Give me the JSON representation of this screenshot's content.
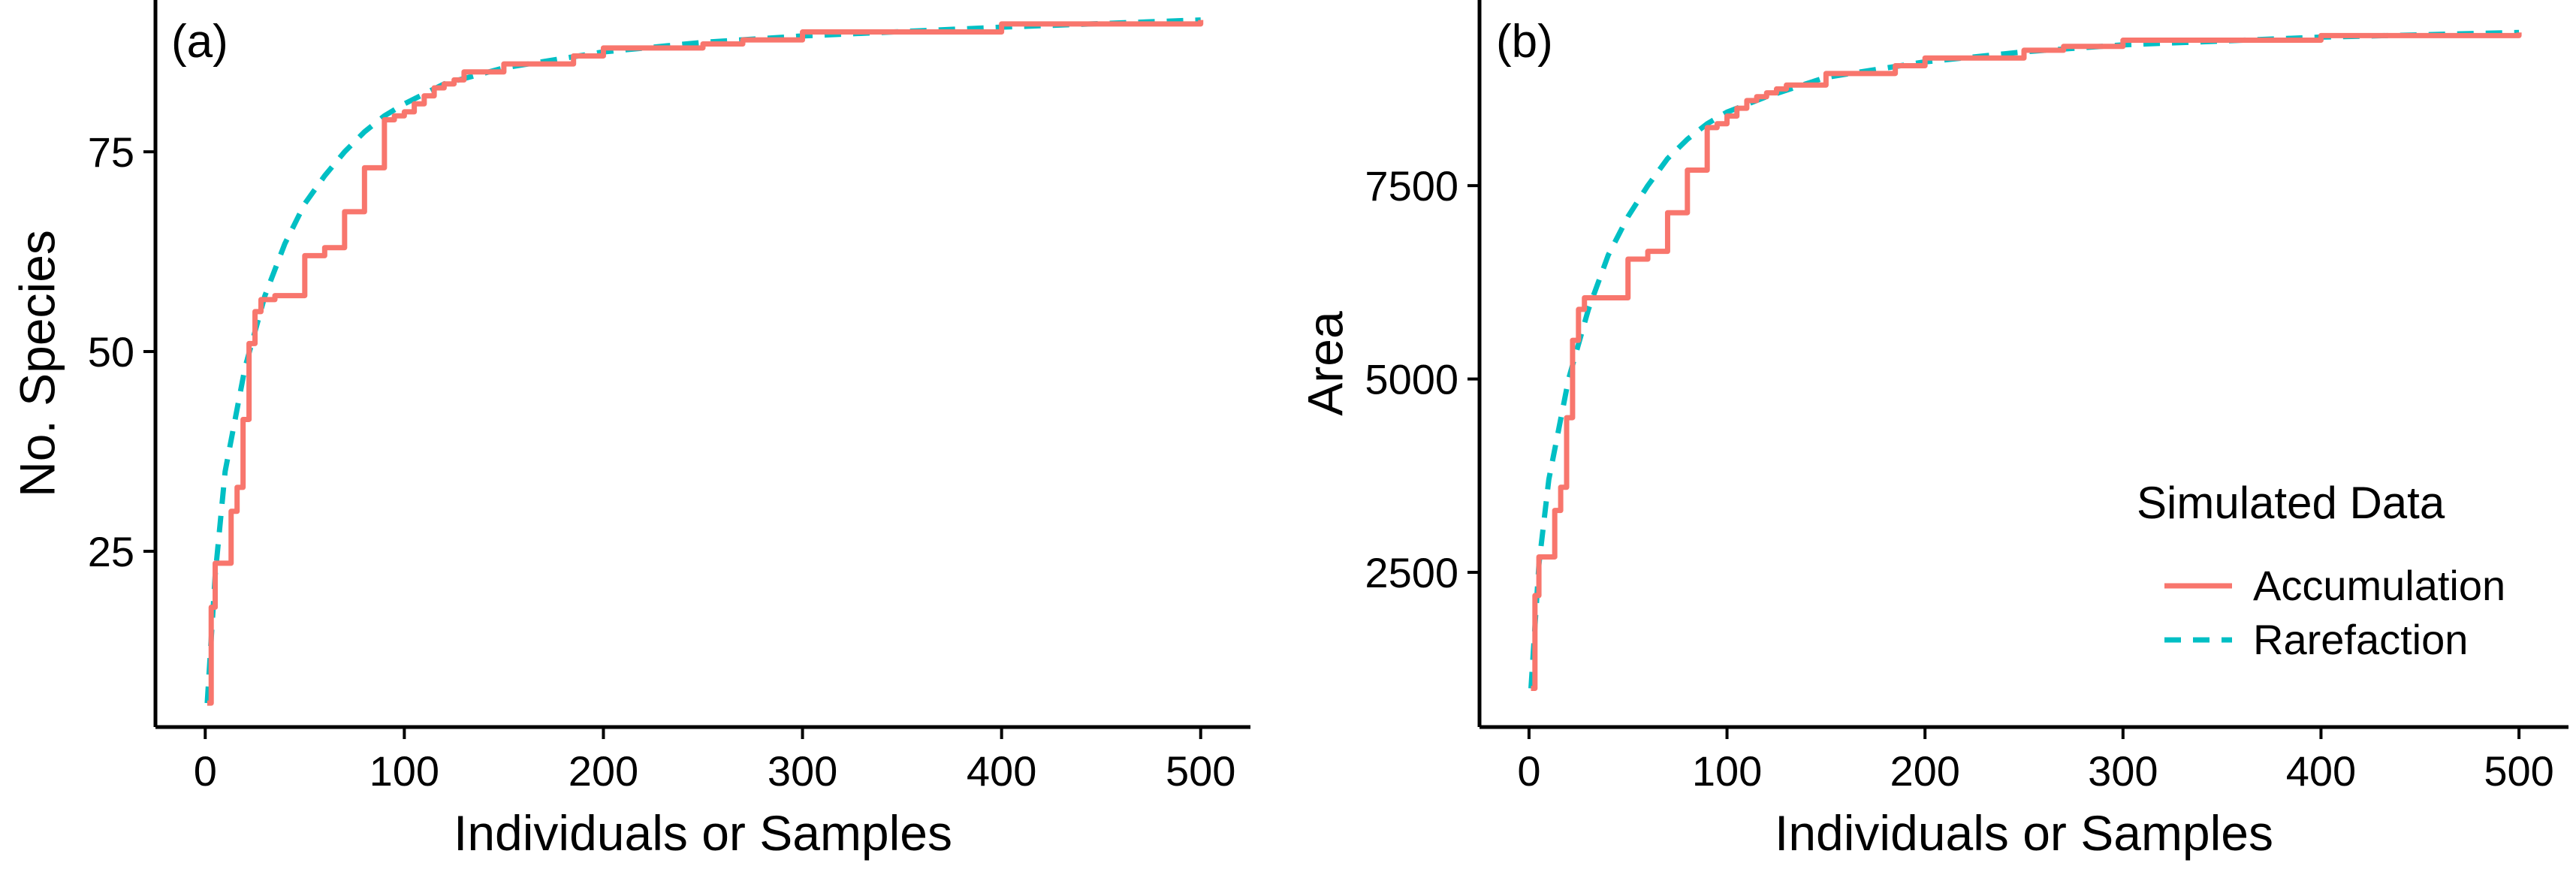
{
  "colors": {
    "accumulation": "#F8766D",
    "rarefaction": "#00BFC4",
    "axis": "#000000"
  },
  "legend": {
    "title": "Simulated Data",
    "items": [
      {
        "label": "Accumulation",
        "color": "#F8766D",
        "style": "solid"
      },
      {
        "label": "Rarefaction",
        "color": "#00BFC4",
        "style": "dashed"
      }
    ]
  },
  "chart_data": [
    {
      "type": "line",
      "panel_label": "(a)",
      "xlabel": "Individuals or Samples",
      "ylabel": "No. Species",
      "xlim": [
        -25,
        525
      ],
      "ylim": [
        3,
        94
      ],
      "xticks": [
        0,
        100,
        200,
        300,
        400,
        500
      ],
      "yticks": [
        25,
        50,
        75
      ],
      "grid": false,
      "series": [
        {
          "name": "Accumulation",
          "style": "step",
          "x": [
            1,
            3,
            5,
            10,
            13,
            16,
            19,
            22,
            25,
            28,
            32,
            35,
            40,
            50,
            60,
            70,
            80,
            90,
            95,
            100,
            105,
            110,
            115,
            120,
            125,
            130,
            150,
            185,
            200,
            230,
            250,
            270,
            300,
            400,
            500
          ],
          "y": [
            6,
            18,
            23.5,
            23.5,
            30,
            33,
            41.5,
            51,
            55,
            56.5,
            56.5,
            57,
            57,
            62,
            63,
            67.5,
            73,
            79,
            79.5,
            80,
            81,
            82,
            83,
            83.5,
            84,
            85,
            86,
            87,
            88,
            88,
            88.5,
            89,
            90,
            91,
            91.5
          ]
        },
        {
          "name": "Rarefaction",
          "style": "dashed",
          "x": [
            1,
            5,
            10,
            20,
            30,
            40,
            50,
            60,
            70,
            80,
            90,
            100,
            120,
            150,
            200,
            250,
            300,
            400,
            500
          ],
          "y": [
            6,
            22,
            35,
            48,
            57,
            63.5,
            68.5,
            72,
            75,
            77.5,
            79.5,
            81,
            83.5,
            85.5,
            87.5,
            88.7,
            89.5,
            90.6,
            91.5
          ]
        }
      ]
    },
    {
      "type": "line",
      "panel_label": "(b)",
      "xlabel": "Individuals or Samples",
      "ylabel": "Area",
      "xlim": [
        -25,
        525
      ],
      "ylim": [
        500,
        9900
      ],
      "xticks": [
        0,
        100,
        200,
        300,
        400,
        500
      ],
      "yticks": [
        2500,
        5000,
        7500
      ],
      "grid": false,
      "series": [
        {
          "name": "Accumulation",
          "style": "step",
          "x": [
            1,
            3,
            5,
            10,
            13,
            16,
            19,
            22,
            25,
            28,
            32,
            35,
            40,
            50,
            60,
            70,
            80,
            90,
            95,
            100,
            105,
            110,
            115,
            120,
            125,
            130,
            150,
            185,
            200,
            230,
            250,
            270,
            300,
            400,
            500
          ],
          "y": [
            1000,
            2200,
            2700,
            2700,
            3300,
            3600,
            4500,
            5500,
            5900,
            6050,
            6050,
            6050,
            6050,
            6550,
            6650,
            7150,
            7700,
            8250,
            8300,
            8400,
            8500,
            8600,
            8650,
            8700,
            8750,
            8800,
            8950,
            9050,
            9150,
            9150,
            9250,
            9300,
            9380,
            9440,
            9480
          ]
        },
        {
          "name": "Rarefaction",
          "style": "dashed",
          "x": [
            1,
            5,
            10,
            20,
            30,
            40,
            50,
            60,
            70,
            80,
            90,
            100,
            120,
            150,
            200,
            250,
            300,
            400,
            500
          ],
          "y": [
            1000,
            2600,
            3700,
            5000,
            5900,
            6600,
            7100,
            7500,
            7850,
            8100,
            8300,
            8450,
            8650,
            8900,
            9100,
            9230,
            9320,
            9420,
            9480
          ]
        }
      ]
    }
  ]
}
